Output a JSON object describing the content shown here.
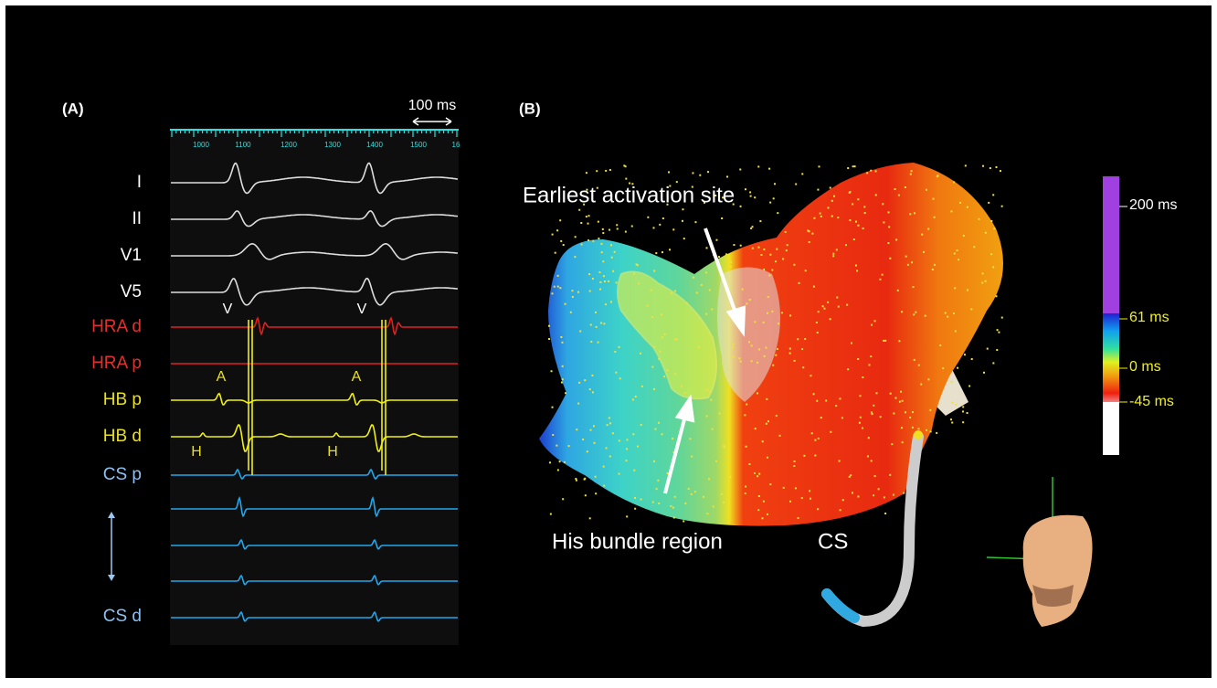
{
  "panel_a": {
    "label": "(A)",
    "scale_label": "100 ms",
    "ruler_labels": [
      "1000",
      "1100",
      "1200",
      "1300",
      "1400",
      "1500",
      "16"
    ],
    "channels": [
      "I",
      "II",
      "V1",
      "V5",
      "HRA d",
      "HRA p",
      "HB p",
      "HB d",
      "CS p",
      "CS d"
    ],
    "annotations": [
      "V",
      "V",
      "A",
      "A",
      "H",
      "H"
    ]
  },
  "panel_b": {
    "label": "(B)",
    "annotations": [
      "Earliest activation site",
      "His bundle region",
      "CS"
    ],
    "colorbar_labels": [
      "200 ms",
      "61 ms",
      "0 ms",
      "-45 ms"
    ]
  }
}
